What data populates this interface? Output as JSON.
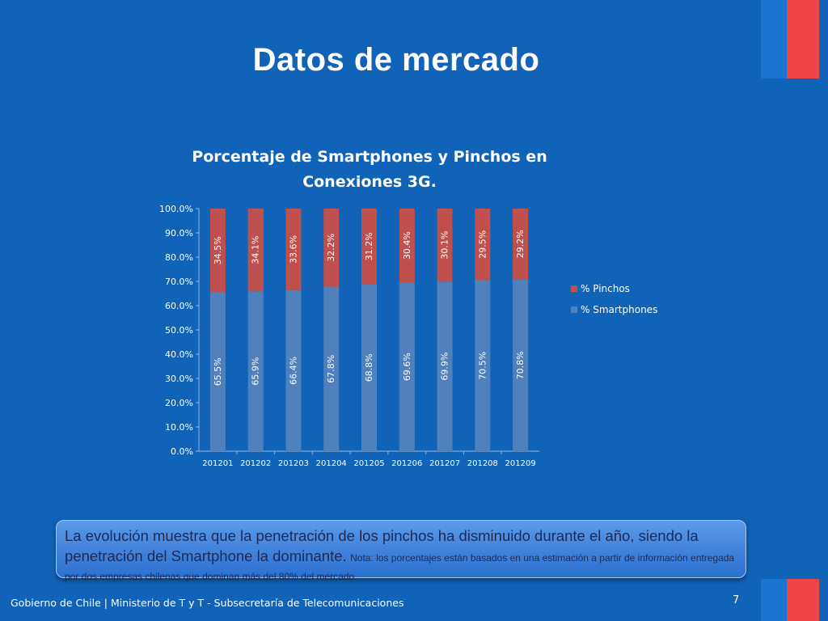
{
  "slide": {
    "title": "Datos de mercado",
    "page_number": "7",
    "footer": "Gobierno de Chile | Ministerio de T y T - Subsecretaría de Telecomunicaciones"
  },
  "note": {
    "main": "La evolución muestra que la penetración de los pinchos ha disminuido durante el año, siendo la penetración del Smartphone la dominante.",
    "small": "Nota: los porcentajes están basados en una estimación a partir de información entregada por dos empresas chilenas que dominan más del 80% del mercado."
  },
  "colors": {
    "background": "#1163b8",
    "smartphones": "#4f81bd",
    "pinchos": "#c0504d",
    "accent_red": "#ef4444"
  },
  "chart_data": {
    "type": "bar",
    "stacked": true,
    "title": "Porcentaje de Smartphones y Pinchos en Conexiones 3G.",
    "title_lines": [
      "Porcentaje de Smartphones y Pinchos en",
      "Conexiones 3G."
    ],
    "categories": [
      "201201",
      "201202",
      "201203",
      "201204",
      "201205",
      "201206",
      "201207",
      "201208",
      "201209"
    ],
    "series": [
      {
        "name": "% Smartphones",
        "values": [
          65.5,
          65.9,
          66.4,
          67.8,
          68.8,
          69.6,
          69.9,
          70.5,
          70.8
        ],
        "labels": [
          "65.5%",
          "65.9%",
          "66.4%",
          "67.8%",
          "68.8%",
          "69.6%",
          "69.9%",
          "70.5%",
          "70.8%"
        ]
      },
      {
        "name": "% Pinchos",
        "values": [
          34.5,
          34.1,
          33.6,
          32.2,
          31.2,
          30.4,
          30.1,
          29.5,
          29.2
        ],
        "labels": [
          "34.5%",
          "34.1%",
          "33.6%",
          "32.2%",
          "31.2%",
          "30.4%",
          "30.1%",
          "29.5%",
          "29.2%"
        ]
      }
    ],
    "ylim": [
      0,
      100
    ],
    "yticks": [
      "0.0%",
      "10.0%",
      "20.0%",
      "30.0%",
      "40.0%",
      "50.0%",
      "60.0%",
      "70.0%",
      "80.0%",
      "90.0%",
      "100.0%"
    ],
    "legend": [
      "% Pinchos",
      "% Smartphones"
    ],
    "legend_position": "right",
    "grid": false
  }
}
